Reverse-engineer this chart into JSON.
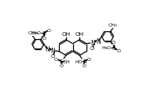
{
  "bg": "#ffffff",
  "lc": "#000000",
  "lw": 0.9,
  "fs": 5.0,
  "nap_lc": [
    108,
    80
  ],
  "nap_r": 13,
  "tol_r": 10
}
